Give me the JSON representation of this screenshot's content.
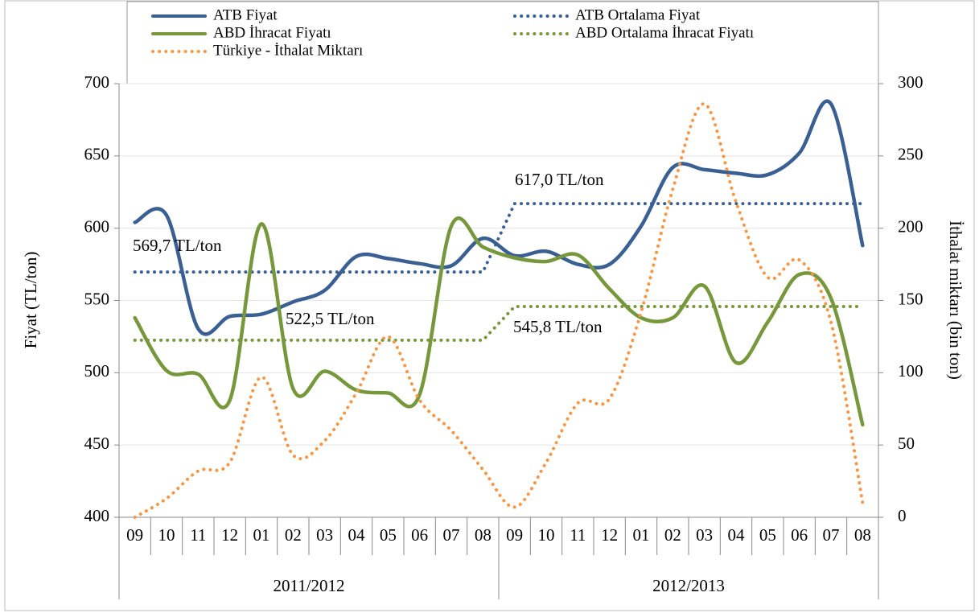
{
  "chart_data": {
    "type": "line",
    "categories": [
      "09",
      "10",
      "11",
      "12",
      "01",
      "02",
      "03",
      "04",
      "05",
      "06",
      "07",
      "08",
      "09",
      "10",
      "11",
      "12",
      "01",
      "02",
      "03",
      "04",
      "05",
      "06",
      "07",
      "08"
    ],
    "groups": [
      "2011/2012",
      "2012/2013"
    ],
    "ylabel": "Fiyat (TL/ton)",
    "y2label": "İthalat miktarı (bin ton)",
    "ylim": [
      400,
      700
    ],
    "yticks": [
      400,
      450,
      500,
      550,
      600,
      650,
      700
    ],
    "y2lim": [
      0,
      300
    ],
    "y2ticks": [
      0,
      50,
      100,
      150,
      200,
      250,
      300
    ],
    "grid": true,
    "series": [
      {
        "name": "ATB Fiyat",
        "color": "#3a5f93",
        "style": "solid",
        "values": [
          604,
          609,
          530.5,
          539,
          540.5,
          549,
          557,
          580.5,
          579,
          575.5,
          574,
          593,
          581,
          584,
          575,
          575,
          601.5,
          642,
          640.5,
          638,
          637,
          652,
          686,
          588
        ]
      },
      {
        "name": "ATB Ortalama Fiyat",
        "color": "#3a5f93",
        "style": "dotted",
        "values": [
          569.7,
          569.7,
          569.7,
          569.7,
          569.7,
          569.7,
          569.7,
          569.7,
          569.7,
          569.7,
          569.7,
          569.7,
          617,
          617,
          617,
          617,
          617,
          617,
          617,
          617,
          617,
          617,
          617,
          617
        ]
      },
      {
        "name": "ABD İhracat Fiyatı",
        "color": "#77973c",
        "style": "solid",
        "values": [
          538,
          501.5,
          499,
          481,
          603,
          489,
          501,
          488,
          486,
          485,
          601.5,
          587,
          579.5,
          577,
          581.5,
          558,
          538,
          538,
          560,
          507,
          535,
          568,
          551.5,
          464
        ]
      },
      {
        "name": "ABD Ortalama İhracat Fiyatı",
        "color": "#77973c",
        "style": "dotted",
        "values": [
          522.5,
          522.5,
          522.5,
          522.5,
          522.5,
          522.5,
          522.5,
          522.5,
          522.5,
          522.5,
          522.5,
          522.5,
          545.8,
          545.8,
          545.8,
          545.8,
          545.8,
          545.8,
          545.8,
          545.8,
          545.8,
          545.8,
          545.8,
          545.8
        ]
      },
      {
        "name": "Türkiye - İthalat Miktarı",
        "color": "#f79646",
        "style": "dotted",
        "axis": "y2",
        "values": [
          0,
          13,
          32,
          38,
          97,
          43,
          53,
          86,
          125,
          81,
          60,
          33,
          7,
          38,
          79,
          82,
          142,
          227,
          286,
          218,
          166,
          178,
          135,
          10
        ]
      }
    ],
    "annotations": [
      "569,7 TL/ton",
      "522,5 TL/ton",
      "617,0 TL/ton",
      "545,8 TL/ton"
    ]
  }
}
